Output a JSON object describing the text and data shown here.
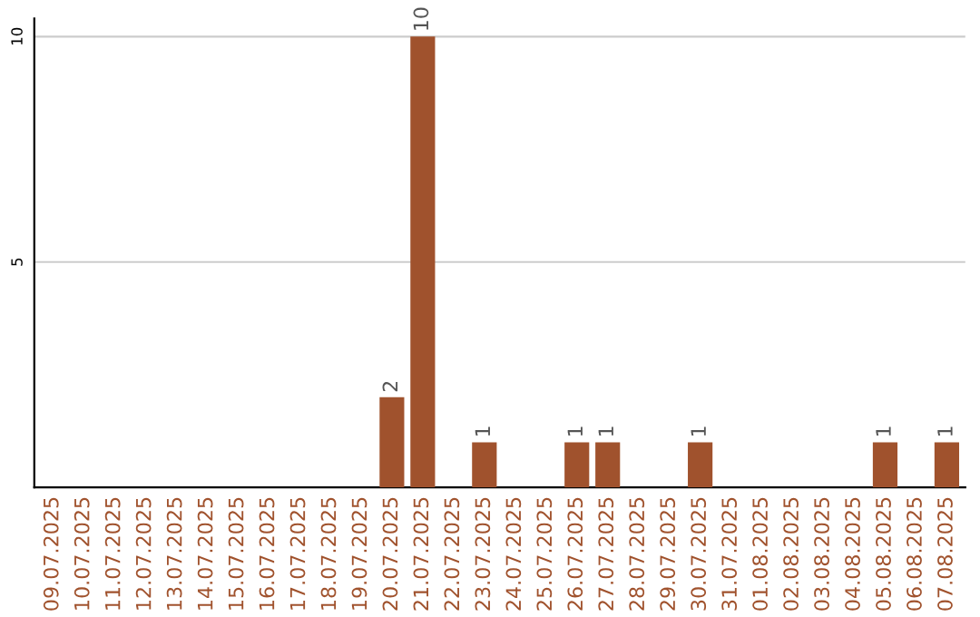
{
  "chart_data": {
    "type": "bar",
    "categories": [
      "09.07.2025",
      "10.07.2025",
      "11.07.2025",
      "12.07.2025",
      "13.07.2025",
      "14.07.2025",
      "15.07.2025",
      "16.07.2025",
      "17.07.2025",
      "18.07.2025",
      "19.07.2025",
      "20.07.2025",
      "21.07.2025",
      "22.07.2025",
      "23.07.2025",
      "24.07.2025",
      "25.07.2025",
      "26.07.2025",
      "27.07.2025",
      "28.07.2025",
      "29.07.2025",
      "30.07.2025",
      "31.07.2025",
      "01.08.2025",
      "02.08.2025",
      "03.08.2025",
      "04.08.2025",
      "05.08.2025",
      "06.08.2025",
      "07.08.2025"
    ],
    "values": [
      0,
      0,
      0,
      0,
      0,
      0,
      0,
      0,
      0,
      0,
      0,
      2,
      10,
      0,
      1,
      0,
      0,
      1,
      1,
      0,
      0,
      1,
      0,
      0,
      0,
      0,
      0,
      1,
      0,
      1
    ],
    "value_labels": [
      null,
      null,
      null,
      null,
      null,
      null,
      null,
      null,
      null,
      null,
      null,
      "2",
      "10",
      null,
      "1",
      null,
      null,
      "1",
      "1",
      null,
      null,
      "1",
      null,
      null,
      null,
      null,
      null,
      "1",
      null,
      "1"
    ],
    "color": "#a0522d",
    "ylim": [
      0,
      10.4
    ],
    "yticks": [
      5,
      10
    ],
    "grid": "y"
  }
}
